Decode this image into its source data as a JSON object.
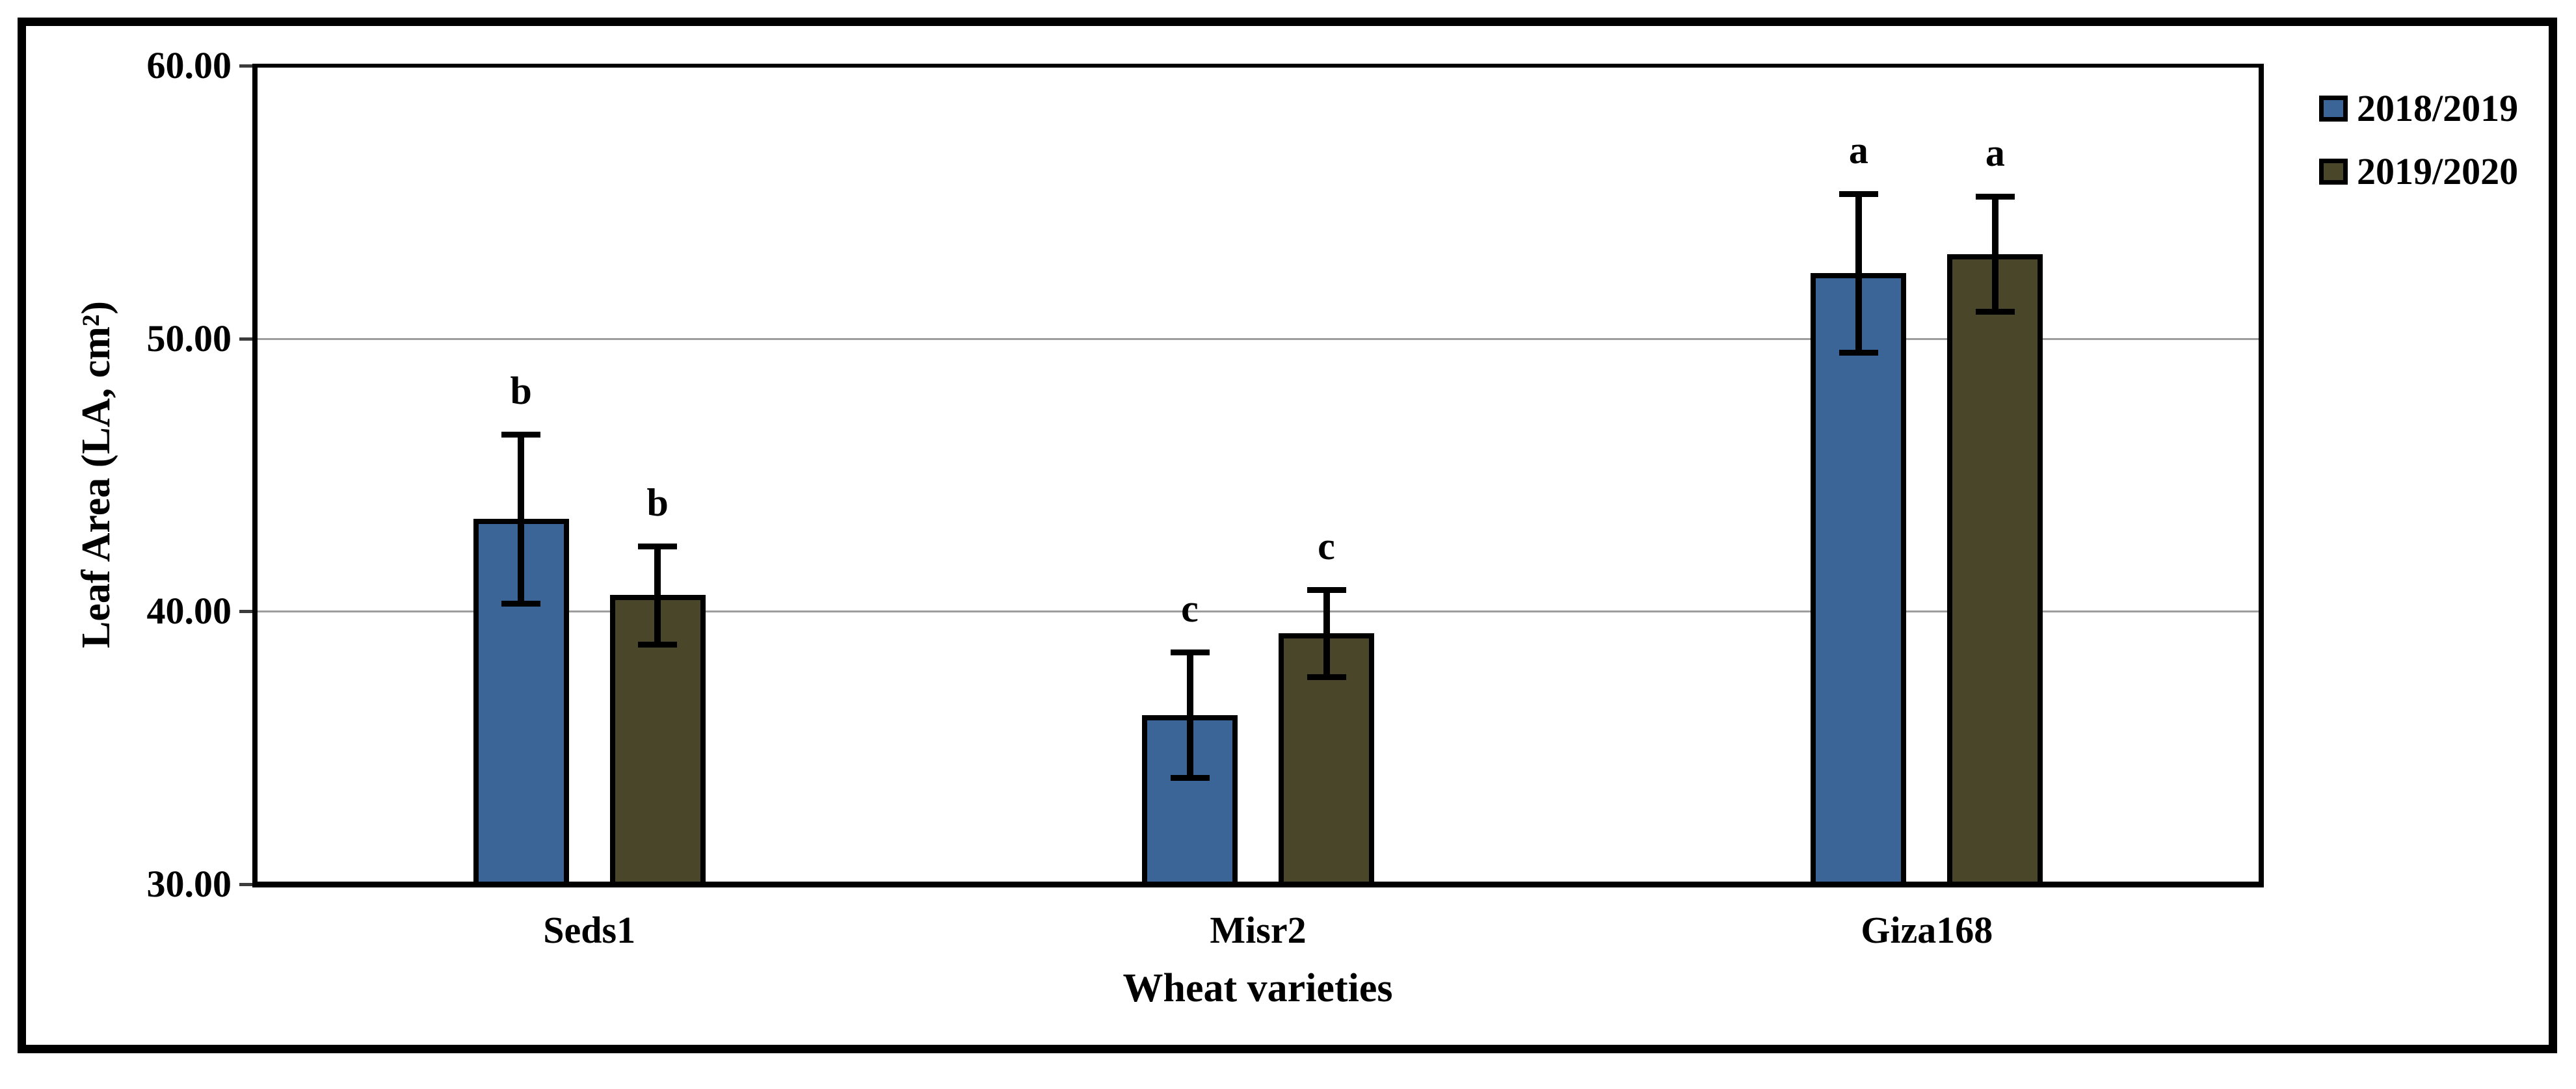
{
  "figure": {
    "background": "#ffffff",
    "frame_color": "#000000"
  },
  "chart_data": {
    "type": "bar",
    "title": "",
    "categories": [
      "Seds1",
      "Misr2",
      "Giza168"
    ],
    "series": [
      {
        "name": "2018/2019",
        "color": "#3A6596",
        "values": [
          43.4,
          36.2,
          52.4
        ],
        "errors": [
          3.1,
          2.3,
          2.9
        ],
        "sig_letters": [
          "b",
          "c",
          "a"
        ]
      },
      {
        "name": "2019/2020",
        "color": "#4A4629",
        "values": [
          40.6,
          39.2,
          53.1
        ],
        "errors": [
          1.8,
          1.6,
          2.1
        ],
        "sig_letters": [
          "b",
          "c",
          "a"
        ]
      }
    ],
    "xlabel": "Wheat varieties",
    "ylabel": "Leaf Area (LA, cm²)",
    "ylim": [
      30,
      60
    ],
    "y_ticks": [
      {
        "value": 30,
        "label": "30.00"
      },
      {
        "value": 40,
        "label": "40.00"
      },
      {
        "value": 50,
        "label": "50.00"
      },
      {
        "value": 60,
        "label": "60.00"
      }
    ],
    "grid": "horizontal-major",
    "gridline_color": "#9d9d9d",
    "text_color": "#000000",
    "legend_position": "top-right-outside"
  }
}
